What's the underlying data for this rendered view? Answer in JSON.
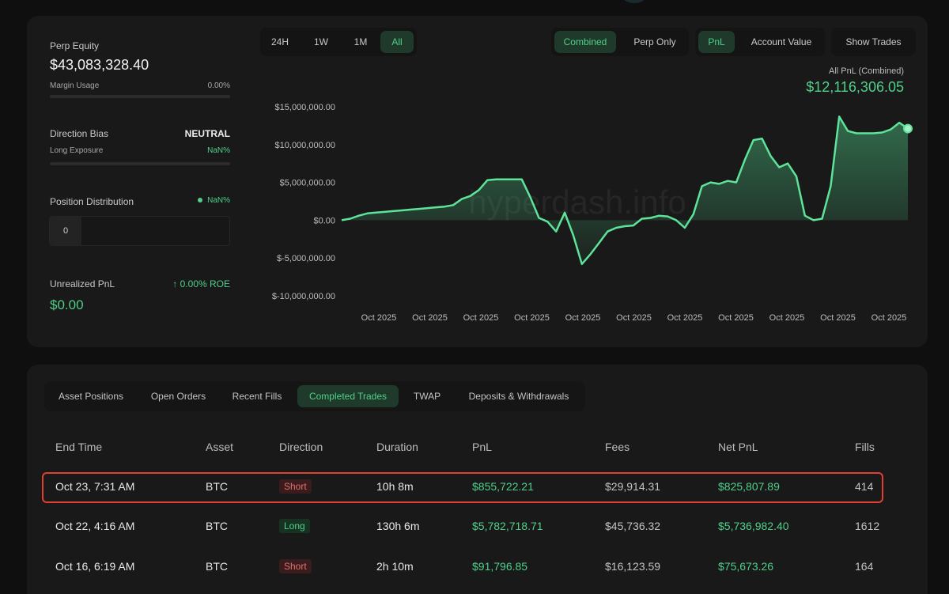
{
  "stats": {
    "perp_equity_label": "Perp Equity",
    "perp_equity_value": "$43,083,328.40",
    "margin_usage_label": "Margin Usage",
    "margin_usage_value": "0.00%",
    "margin_usage_fraction": 0,
    "direction_bias_label": "Direction Bias",
    "direction_bias_value": "NEUTRAL",
    "long_exposure_label": "Long Exposure",
    "long_exposure_value": "NaN%",
    "position_distribution_label": "Position Distribution",
    "position_distribution_value": "NaN%",
    "position_distribution_cell": "0",
    "unrealized_pnl_label": "Unrealized PnL",
    "unrealized_roe": "↑ 0.00% ROE",
    "unrealized_pnl_value": "$0.00"
  },
  "range_tabs": [
    "24H",
    "1W",
    "1M",
    "All"
  ],
  "range_active": "All",
  "mode_tabs": [
    "Combined",
    "Perp Only"
  ],
  "metric_tabs": [
    "PnL",
    "Account Value"
  ],
  "show_trades_label": "Show Trades",
  "chart_header": {
    "title": "All PnL (Combined)",
    "value": "$12,116,306.05"
  },
  "chart_data": {
    "type": "area",
    "title": "",
    "xlabel": "",
    "ylabel": "",
    "ylim": [
      -10000000,
      15000000
    ],
    "y_ticks": [
      "$15,000,000.00",
      "$10,000,000.00",
      "$5,000,000.00",
      "$0.00",
      "$-5,000,000.00",
      "$-10,000,000.00"
    ],
    "x_ticks": [
      "Oct 2025",
      "Oct 2025",
      "Oct 2025",
      "Oct 2025",
      "Oct 2025",
      "Oct 2025",
      "Oct 2025",
      "Oct 2025",
      "Oct 2025",
      "Oct 2025",
      "Oct 2025"
    ],
    "watermark": "hyperdash.info",
    "series": [
      {
        "values": [
          0,
          200000,
          600000,
          900000,
          1000000,
          1100000,
          1200000,
          1300000,
          1400000,
          1500000,
          1600000,
          1700000,
          1800000,
          2000000,
          2800000,
          3200000,
          4000000,
          5300000,
          5400000,
          5400000,
          5400000,
          5400000,
          3000000,
          300000,
          -200000,
          -1500000,
          1000000,
          -2000000,
          -5800000,
          -4500000,
          -3000000,
          -1500000,
          -1000000,
          -800000,
          -700000,
          200000,
          300000,
          600000,
          500000,
          0,
          -1000000,
          800000,
          4500000,
          5000000,
          4800000,
          5200000,
          5000000,
          8000000,
          10600000,
          10800000,
          8500000,
          7000000,
          7500000,
          5800000,
          600000,
          0,
          200000,
          4500000,
          13700000,
          11800000,
          11500000,
          11500000,
          11500000,
          11600000,
          12000000,
          12900000,
          12116306
        ]
      }
    ]
  },
  "tabs": [
    "Asset Positions",
    "Open Orders",
    "Recent Fills",
    "Completed Trades",
    "TWAP",
    "Deposits & Withdrawals"
  ],
  "active_tab": "Completed Trades",
  "table": {
    "headers": [
      "End Time",
      "Asset",
      "Direction",
      "Duration",
      "PnL",
      "Fees",
      "Net PnL",
      "Fills"
    ],
    "rows": [
      [
        "Oct 23, 7:31 AM",
        "BTC",
        "Short",
        "10h 8m",
        "$855,722.21",
        "$29,914.31",
        "$825,807.89",
        "414"
      ],
      [
        "Oct 22, 4:16 AM",
        "BTC",
        "Long",
        "130h 6m",
        "$5,782,718.71",
        "$45,736.32",
        "$5,736,982.40",
        "1612"
      ],
      [
        "Oct 16, 6:19 AM",
        "BTC",
        "Short",
        "2h 10m",
        "$91,796.85",
        "$16,123.59",
        "$75,673.26",
        "164"
      ]
    ]
  },
  "colors": {
    "accent": "#4fd08a",
    "short": "#e07070",
    "highlight": "#e0402f"
  }
}
